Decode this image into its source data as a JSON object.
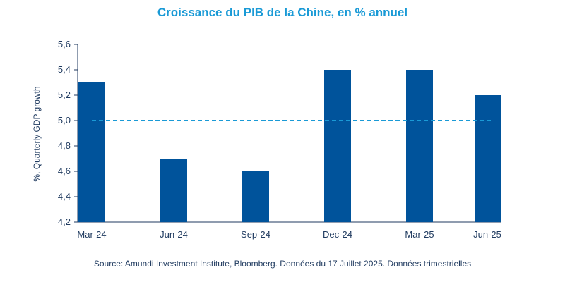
{
  "chart_data": {
    "type": "bar",
    "title": "Croissance du PIB de la Chine, en % annuel",
    "ylabel": "%, Quarterly GDP growth",
    "xlabel": "",
    "categories": [
      "Mar-24",
      "Jun-24",
      "Sep-24",
      "Dec-24",
      "Mar-25",
      "Jun-25"
    ],
    "values": [
      5.3,
      4.7,
      4.6,
      5.4,
      5.4,
      5.2
    ],
    "ylim": [
      4.2,
      5.6
    ],
    "yticks": [
      "4,2",
      "4,4",
      "4,6",
      "4,8",
      "5,0",
      "5,2",
      "5,4",
      "5,6"
    ],
    "reference_line": {
      "value": 5.0,
      "style": "dashed"
    },
    "colors": {
      "bar": "#00539b",
      "reference": "#1a9ad6",
      "axis": "#1f3a5f"
    },
    "grid": false,
    "legend": "none"
  },
  "source": "Source: Amundi Investment Institute, Bloomberg. Données du 17 Juillet 2025. Données trimestrielles"
}
